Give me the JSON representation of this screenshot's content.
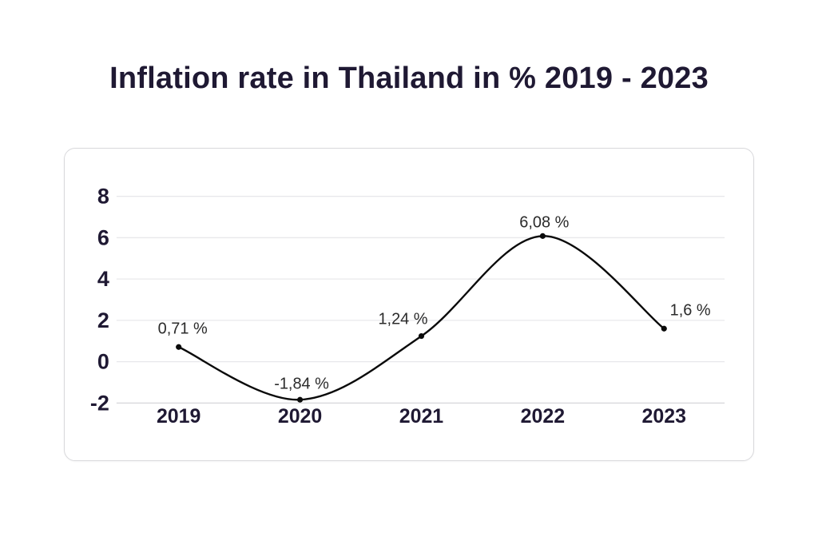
{
  "page": {
    "background": "#ffffff"
  },
  "title": {
    "text": "Inflation rate in Thailand in % 2019 - 2023",
    "color": "#1f1933"
  },
  "chart_data": {
    "type": "line",
    "title": "Inflation rate in Thailand in % 2019 - 2023",
    "categories": [
      "2019",
      "2020",
      "2021",
      "2022",
      "2023"
    ],
    "values": [
      0.71,
      -1.84,
      1.24,
      6.08,
      1.6
    ],
    "point_labels": [
      "0,71 %",
      "-1,84 %",
      "1,24 %",
      "6,08 %",
      "1,6 %"
    ],
    "y_ticks": [
      8,
      6,
      4,
      2,
      0,
      -2
    ],
    "ylim": [
      -2,
      8
    ],
    "xlabel": "",
    "ylabel": "",
    "grid": true,
    "legend": false,
    "line_style": "smooth",
    "colors": {
      "line": "#0a0a0a",
      "marker": "#0a0a0a",
      "grid": "#e8e8eb",
      "axis_line": "#d6d6da",
      "tick_text": "#1f1933",
      "point_label_text": "#2b2b2b",
      "card_border": "#d9d9dc"
    }
  }
}
